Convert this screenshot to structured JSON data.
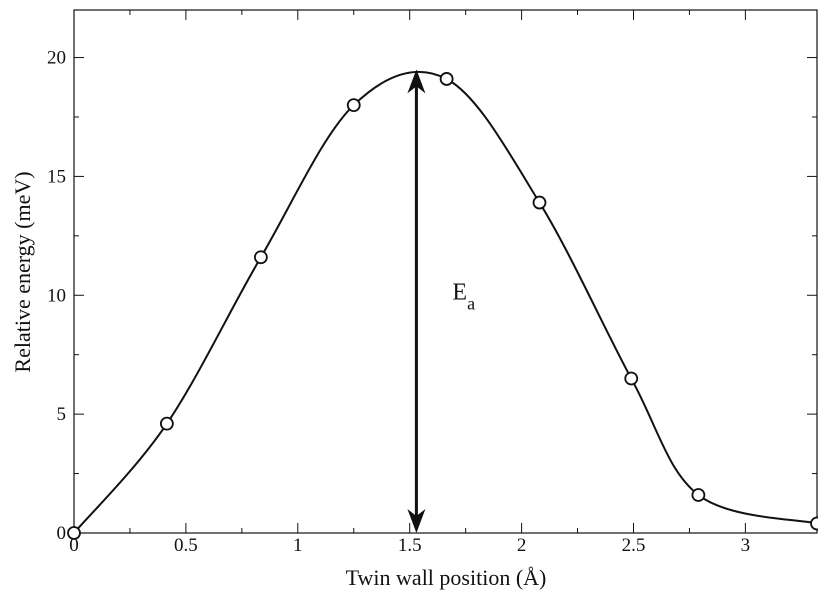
{
  "chart_data": {
    "type": "line",
    "x_label": "Twin wall position (Å)",
    "y_label": "Relative energy (meV)",
    "x": [
      0,
      0.415,
      0.835,
      1.25,
      1.665,
      2.08,
      2.49,
      2.79,
      3.32
    ],
    "series": [
      {
        "color": "#111111",
        "values": [
          0,
          4.6,
          11.6,
          18.0,
          19.1,
          13.9,
          6.5,
          1.6,
          0.4
        ]
      }
    ],
    "xlim": [
      0,
      3.32
    ],
    "ylim": [
      0,
      22
    ],
    "xticks": [
      0,
      0.5,
      1,
      1.5,
      2,
      2.5,
      3
    ],
    "yticks": [
      0,
      5,
      10,
      15,
      20
    ],
    "annotation": {
      "text": "E",
      "subscript": "a",
      "x": 1.53,
      "y": [
        0,
        19.5
      ]
    }
  }
}
